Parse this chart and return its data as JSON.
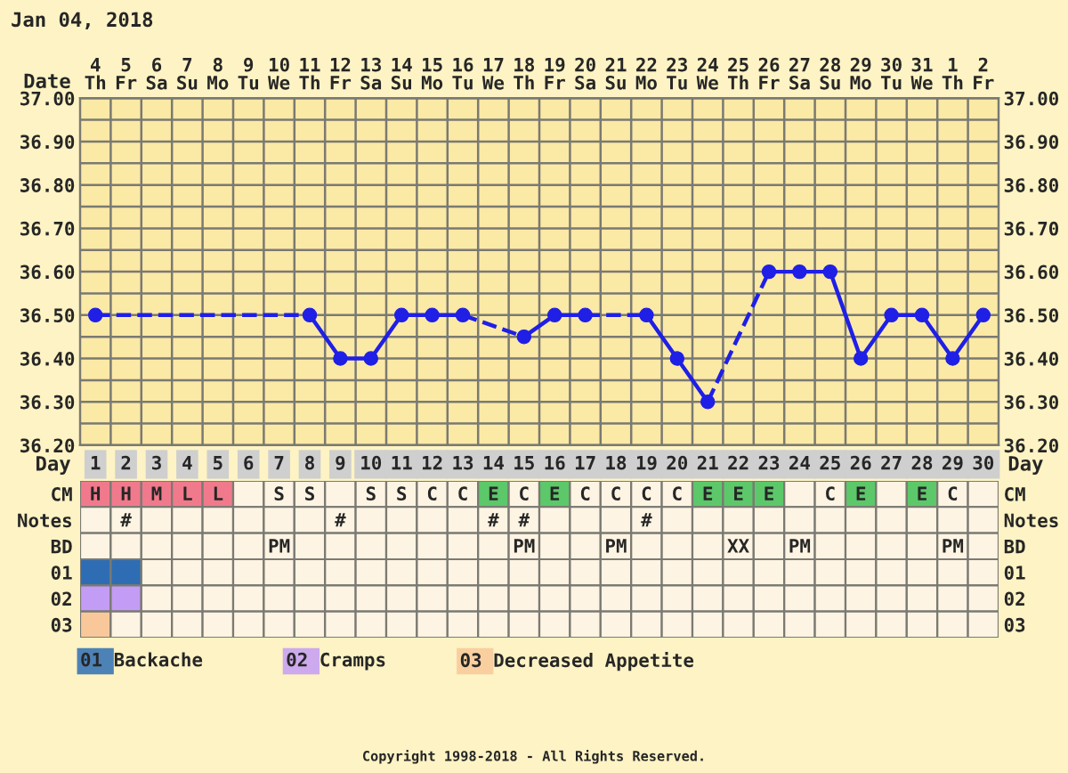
{
  "chart_data": [
    {
      "type": "line",
      "title": "Jan 04, 2018",
      "xlabel": "Date",
      "categories": [
        "4\nTh",
        "5\nFr",
        "6\nSa",
        "7\nSu",
        "8\nMo",
        "9\nTu",
        "10\nWe",
        "11\nTh",
        "12\nFr",
        "13\nSa",
        "14\nSu",
        "15\nMo",
        "16\nTu",
        "17\nWe",
        "18\nTh",
        "19\nFr",
        "20\nSa",
        "21\nSu",
        "22\nMo",
        "23\nTu",
        "24\nWe",
        "25\nTh",
        "26\nFr",
        "27\nSa",
        "28\nSu",
        "29\nMo",
        "30\nTu",
        "31\nWe",
        "1\nTh",
        "2\nFr"
      ],
      "series": [
        {
          "color": "#1f1fe6",
          "values": [
            36.5,
            null,
            null,
            null,
            null,
            null,
            null,
            36.5,
            36.4,
            36.4,
            36.5,
            36.5,
            36.5,
            null,
            36.45,
            36.5,
            36.5,
            null,
            36.5,
            36.4,
            36.3,
            null,
            36.6,
            36.6,
            36.6,
            36.4,
            36.5,
            36.5,
            36.4,
            36.5
          ]
        }
      ],
      "ylim": [
        36.2,
        37.0
      ],
      "yticks": [
        {
          "value": 36.2,
          "label": "36.20"
        },
        {
          "value": 36.25,
          "label": null
        },
        {
          "value": 36.3,
          "label": "36.30"
        },
        {
          "value": 36.35,
          "label": null
        },
        {
          "value": 36.4,
          "label": "36.40"
        },
        {
          "value": 36.45,
          "label": null
        },
        {
          "value": 36.5,
          "label": "36.50"
        },
        {
          "value": 36.55,
          "label": null
        },
        {
          "value": 36.6,
          "label": "36.60"
        },
        {
          "value": 36.65,
          "label": null
        },
        {
          "value": 36.7,
          "label": "36.70"
        },
        {
          "value": 36.75,
          "label": null
        },
        {
          "value": 36.8,
          "label": "36.80"
        },
        {
          "value": 36.85,
          "label": null
        },
        {
          "value": 36.9,
          "label": "36.90"
        },
        {
          "value": 36.95,
          "label": null
        },
        {
          "value": 37.0,
          "label": "37.00"
        }
      ],
      "y2lim": [
        36.2,
        37.0
      ],
      "y2ticks": [
        {
          "value": 36.2,
          "label": "36.20"
        },
        {
          "value": 36.3,
          "label": "36.30"
        },
        {
          "value": 36.4,
          "label": "36.40"
        },
        {
          "value": 36.5,
          "label": "36.50"
        },
        {
          "value": 36.6,
          "label": "36.60"
        },
        {
          "value": 36.7,
          "label": "36.70"
        },
        {
          "value": 36.8,
          "label": "36.80"
        },
        {
          "value": 36.9,
          "label": "36.90"
        },
        {
          "value": 37.0,
          "label": "37.00"
        }
      ],
      "grid": true,
      "marker": "circle",
      "line_style": "solid",
      "legend": false
    },
    {
      "type": "heatmap",
      "xlabel": "Day",
      "categories": [
        "1",
        "2",
        "3",
        "4",
        "5",
        "6",
        "7",
        "8",
        "9",
        "10",
        "11",
        "12",
        "13",
        "14",
        "15",
        "16",
        "17",
        "18",
        "19",
        "20",
        "21",
        "22",
        "23",
        "24",
        "25",
        "26",
        "27",
        "28",
        "29",
        "30"
      ],
      "y_categories": [
        "CM",
        "Notes",
        "BD",
        "01",
        "02",
        "03"
      ],
      "y2_categories": [
        "CM",
        "Notes",
        "BD",
        "01",
        "02",
        "03"
      ],
      "cells": [
        [
          null,
          null,
          null,
          null,
          null,
          null,
          null,
          null,
          null,
          null,
          null,
          null,
          null,
          null,
          null,
          null,
          null,
          null,
          null,
          null,
          null,
          null,
          null,
          null,
          null,
          null,
          null,
          null,
          null,
          null
        ],
        [
          null,
          null,
          null,
          null,
          null,
          null,
          null,
          null,
          null,
          null,
          null,
          null,
          null,
          null,
          null,
          null,
          null,
          null,
          null,
          null,
          null,
          null,
          null,
          null,
          null,
          null,
          null,
          null,
          null,
          null
        ],
        [
          null,
          null,
          null,
          null,
          null,
          null,
          null,
          null,
          null,
          null,
          null,
          null,
          null,
          null,
          null,
          null,
          null,
          null,
          null,
          null,
          null,
          null,
          null,
          null,
          null,
          null,
          null,
          null,
          null,
          null
        ],
        [
          null,
          null,
          null,
          null,
          null,
          null,
          null,
          null,
          null,
          null,
          null,
          null,
          null,
          null,
          null,
          null,
          null,
          null,
          null,
          null,
          null,
          null,
          null,
          null,
          null,
          null,
          null,
          null,
          null,
          null
        ],
        [
          null,
          null,
          null,
          null,
          null,
          null,
          null,
          null,
          null,
          null,
          null,
          null,
          null,
          null,
          null,
          null,
          null,
          null,
          null,
          null,
          null,
          null,
          null,
          null,
          null,
          null,
          null,
          null,
          null,
          null
        ],
        [
          null,
          null,
          null,
          null,
          null,
          null,
          null,
          null,
          null,
          null,
          null,
          null,
          null,
          null,
          null,
          null,
          null,
          null,
          null,
          null,
          null,
          null,
          null,
          null,
          null,
          null,
          null,
          null,
          null,
          null
        ]
      ],
      "cell_labels": [
        [
          "H",
          "H",
          "M",
          "L",
          "L",
          null,
          "S",
          "S",
          null,
          "S",
          "S",
          "C",
          "C",
          "E",
          "C",
          "E",
          "C",
          "C",
          "C",
          "C",
          "E",
          "E",
          "E",
          null,
          "C",
          "E",
          null,
          "E",
          "C",
          null
        ],
        [
          null,
          "#",
          null,
          null,
          null,
          null,
          null,
          null,
          "#",
          null,
          null,
          null,
          null,
          "#",
          "#",
          null,
          null,
          null,
          "#",
          null,
          null,
          null,
          null,
          null,
          null,
          null,
          null,
          null,
          null,
          null
        ],
        [
          null,
          null,
          null,
          null,
          null,
          null,
          "PM",
          null,
          null,
          null,
          null,
          null,
          null,
          null,
          "PM",
          null,
          null,
          "PM",
          null,
          null,
          null,
          "XX",
          null,
          "PM",
          null,
          null,
          null,
          null,
          "PM",
          null
        ],
        [
          null,
          null,
          null,
          null,
          null,
          null,
          null,
          null,
          null,
          null,
          null,
          null,
          null,
          null,
          null,
          null,
          null,
          null,
          null,
          null,
          null,
          null,
          null,
          null,
          null,
          null,
          null,
          null,
          null,
          null
        ],
        [
          null,
          null,
          null,
          null,
          null,
          null,
          null,
          null,
          null,
          null,
          null,
          null,
          null,
          null,
          null,
          null,
          null,
          null,
          null,
          null,
          null,
          null,
          null,
          null,
          null,
          null,
          null,
          null,
          null,
          null
        ],
        [
          null,
          null,
          null,
          null,
          null,
          null,
          null,
          null,
          null,
          null,
          null,
          null,
          null,
          null,
          null,
          null,
          null,
          null,
          null,
          null,
          null,
          null,
          null,
          null,
          null,
          null,
          null,
          null,
          null,
          null
        ]
      ],
      "colors": [
        [
          "#f07a8c",
          "#f07a8c",
          "#f07a8c",
          "#f07a8c",
          "#f07a8c",
          null,
          null,
          null,
          null,
          null,
          null,
          null,
          null,
          "#5cc86a",
          null,
          "#5cc86a",
          null,
          null,
          null,
          null,
          "#5cc86a",
          "#5cc86a",
          "#5cc86a",
          null,
          null,
          "#5cc86a",
          null,
          "#5cc86a",
          null,
          null
        ],
        [
          null,
          null,
          null,
          null,
          null,
          null,
          null,
          null,
          null,
          null,
          null,
          null,
          null,
          null,
          null,
          null,
          null,
          null,
          null,
          null,
          null,
          null,
          null,
          null,
          null,
          null,
          null,
          null,
          null,
          null
        ],
        [
          null,
          null,
          null,
          null,
          null,
          null,
          null,
          null,
          null,
          null,
          null,
          null,
          null,
          null,
          null,
          null,
          null,
          null,
          null,
          null,
          null,
          null,
          null,
          null,
          null,
          null,
          null,
          null,
          null,
          null
        ],
        [
          "#2e6db4",
          "#2e6db4",
          null,
          null,
          null,
          null,
          null,
          null,
          null,
          null,
          null,
          null,
          null,
          null,
          null,
          null,
          null,
          null,
          null,
          null,
          null,
          null,
          null,
          null,
          null,
          null,
          null,
          null,
          null,
          null
        ],
        [
          "#c39cf5",
          "#c39cf5",
          null,
          null,
          null,
          null,
          null,
          null,
          null,
          null,
          null,
          null,
          null,
          null,
          null,
          null,
          null,
          null,
          null,
          null,
          null,
          null,
          null,
          null,
          null,
          null,
          null,
          null,
          null,
          null
        ],
        [
          "#f9c89a",
          null,
          null,
          null,
          null,
          null,
          null,
          null,
          null,
          null,
          null,
          null,
          null,
          null,
          null,
          null,
          null,
          null,
          null,
          null,
          null,
          null,
          null,
          null,
          null,
          null,
          null,
          null,
          null,
          null
        ]
      ],
      "annotations": [
        "01 Backache",
        "02 Cramps",
        "03 Decreased Appetite",
        "Copyright 1998-2018 - All Rights Reserved."
      ]
    }
  ]
}
